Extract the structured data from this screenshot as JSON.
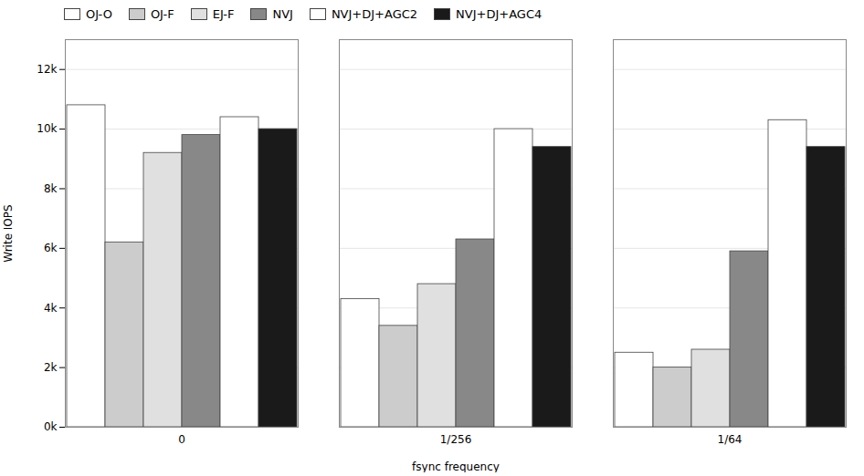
{
  "chart_data": {
    "type": "bar",
    "categories": [
      "0",
      "1/256",
      "1/64"
    ],
    "series": [
      {
        "name": "OJ-O",
        "color": "white",
        "values": [
          10800,
          4300,
          2500
        ]
      },
      {
        "name": "OJ-F",
        "color": "#cccccc",
        "values": [
          6200,
          3400,
          2000
        ]
      },
      {
        "name": "EJ-F",
        "color": "#e0e0e0",
        "values": [
          9200,
          4800,
          2600
        ]
      },
      {
        "name": "NVJ",
        "color": "#888888",
        "values": [
          9800,
          6300,
          5900
        ]
      },
      {
        "name": "NVJ+DJ+AGC2",
        "color": "white",
        "values": [
          10400,
          10000,
          10300
        ]
      },
      {
        "name": "NVJ+DJ+AGC4",
        "color": "#1a1a1a",
        "values": [
          10000,
          9400,
          9400
        ]
      }
    ],
    "xlabel": "fsync frequency",
    "ylabel": "Write IOPS",
    "ylim": [
      0,
      13000
    ],
    "yticks": [
      {
        "value": 0,
        "label": "0k"
      },
      {
        "value": 2000,
        "label": "2k"
      },
      {
        "value": 4000,
        "label": "4k"
      },
      {
        "value": 6000,
        "label": "6k"
      },
      {
        "value": 8000,
        "label": "8k"
      },
      {
        "value": 10000,
        "label": "10k"
      },
      {
        "value": 12000,
        "label": "12k"
      }
    ],
    "grid": true,
    "legend": "top"
  }
}
